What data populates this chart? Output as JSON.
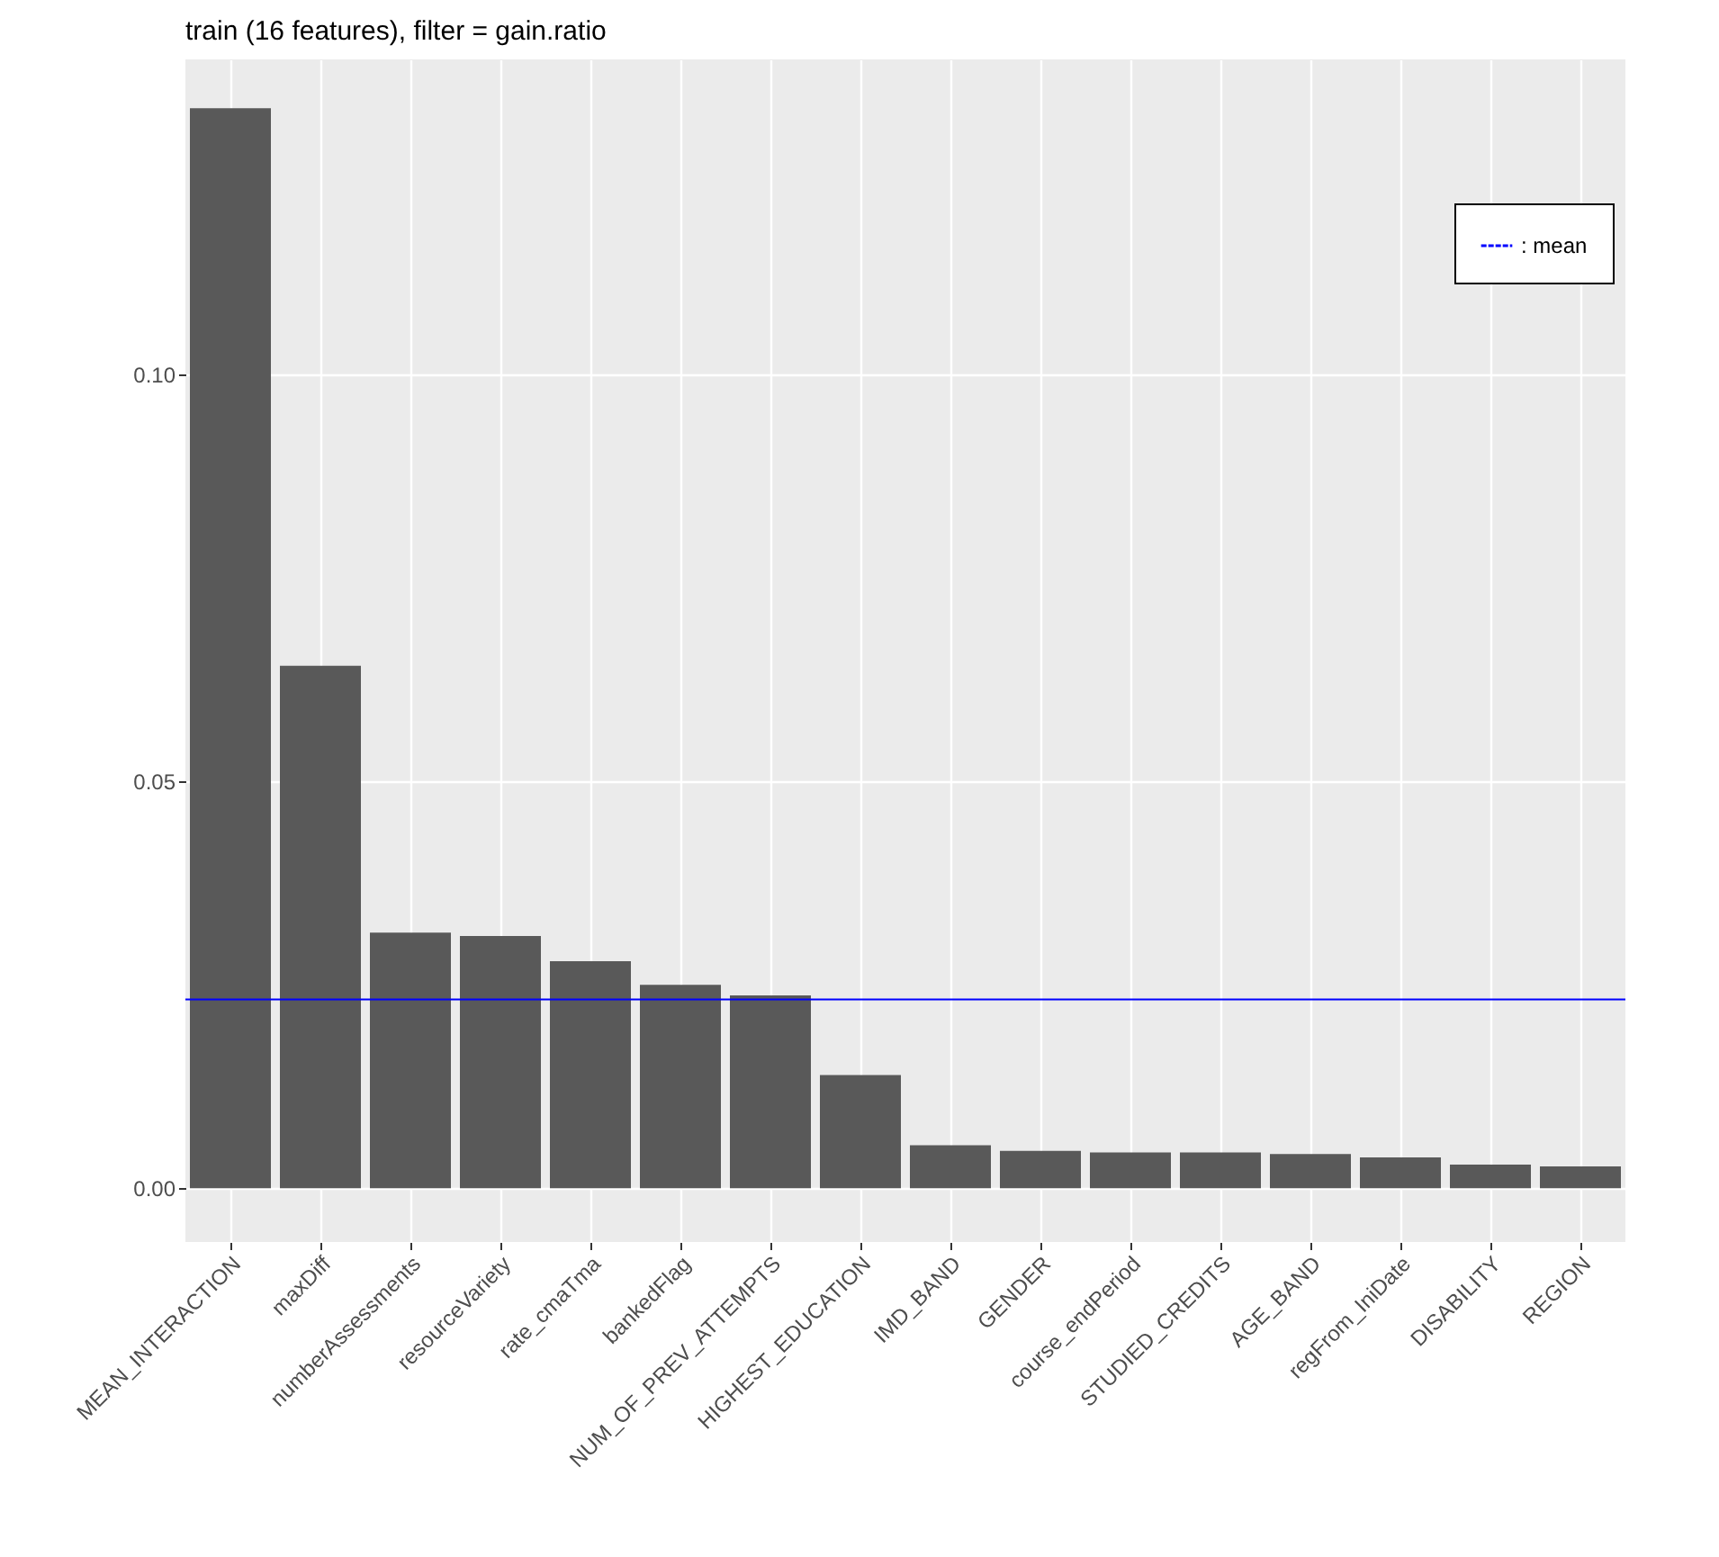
{
  "chart_data": {
    "type": "bar",
    "title": "train (16 features), filter = gain.ratio",
    "categories": [
      "MEAN_INTERACTION",
      "maxDiff",
      "numberAssessments",
      "resourceVariety",
      "rate_cmaTma",
      "bankedFlag",
      "NUM_OF_PREV_ATTEMPTS",
      "HIGHEST_EDUCATION",
      "IMD_BAND",
      "GENDER",
      "course_endPeriod",
      "STUDIED_CREDITS",
      "AGE_BAND",
      "regFrom_IniDate",
      "DISABILITY",
      "REGION"
    ],
    "values": [
      0.1327,
      0.0642,
      0.0314,
      0.031,
      0.0279,
      0.025,
      0.0237,
      0.0139,
      0.0053,
      0.0046,
      0.0044,
      0.0044,
      0.0042,
      0.0038,
      0.0029,
      0.0027
    ],
    "color": "#595959",
    "ylim": [
      -0.0066,
      0.1387
    ],
    "yticks": [
      {
        "value": 0,
        "label": "0.00"
      },
      0.05,
      {
        "value": 0.1,
        "label": "0.10"
      }
    ],
    "grid": true,
    "ref_lines": [
      {
        "axis": "y",
        "value": 0.0232,
        "label": ": mean",
        "color": "#0000ff"
      }
    ],
    "legend": "top right"
  }
}
